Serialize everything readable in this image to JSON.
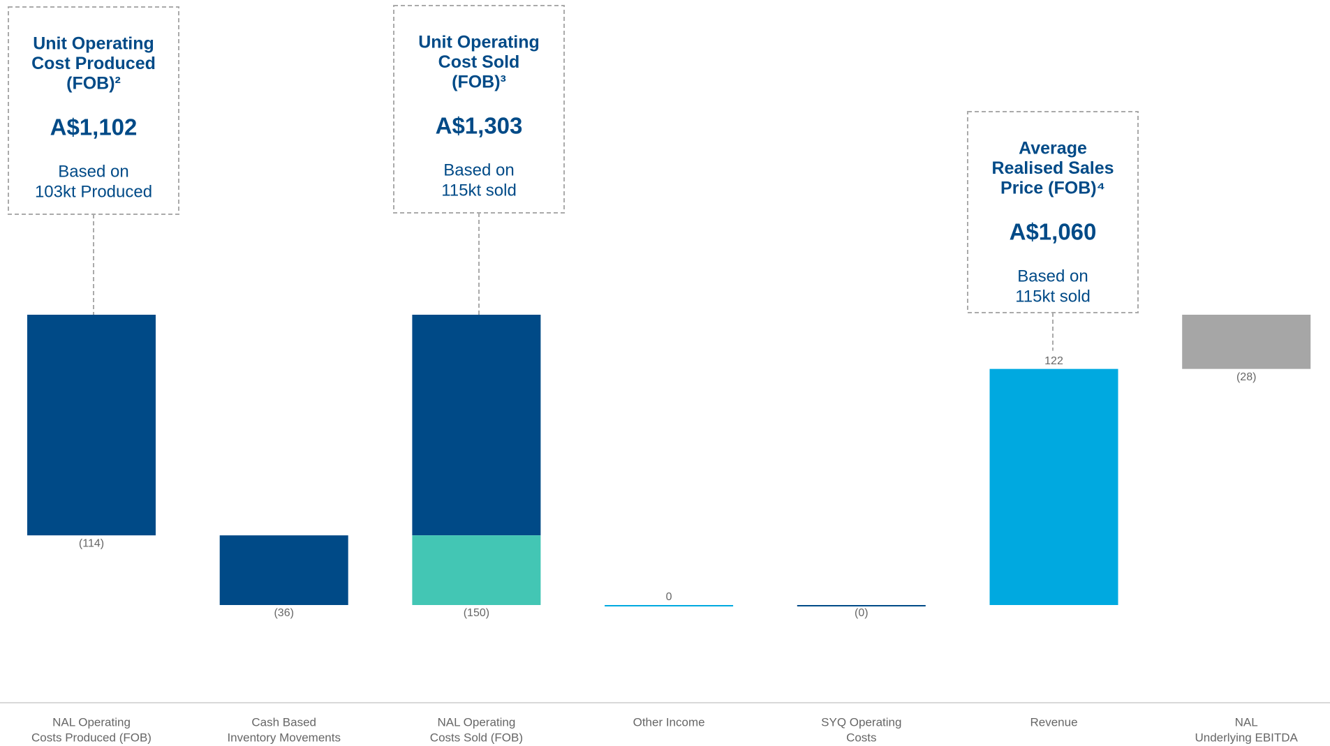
{
  "chart_data": {
    "type": "waterfall",
    "categories": [
      [
        "NAL Operating",
        "Costs Produced (FOB)"
      ],
      [
        "Cash Based",
        "Inventory Movements"
      ],
      [
        "NAL Operating",
        "Costs Sold (FOB)"
      ],
      [
        "Other Income"
      ],
      [
        "SYQ Operating",
        "Costs"
      ],
      [
        "Revenue"
      ],
      [
        "NAL",
        "Underlying EBITDA"
      ]
    ],
    "values": [
      -114,
      -36,
      -150,
      0,
      0,
      122,
      -28
    ],
    "value_labels": [
      "(114)",
      "(36)",
      "(150)",
      "0",
      "(0)",
      "122",
      "(28)"
    ],
    "measures": [
      "relative",
      "relative",
      "total",
      "relative",
      "relative",
      "relative",
      "total"
    ],
    "colors": [
      "#004a87",
      "#004a87",
      "#004a87",
      "#00a9e0",
      "#004a87",
      "#00a9e0",
      "#a6a6a6"
    ],
    "segments": [
      {
        "bar": 2,
        "parts": [
          {
            "value": -114,
            "color": "#004a87"
          },
          {
            "value": -36,
            "color": "#43c6b4"
          }
        ]
      }
    ],
    "annotations": [
      {
        "bar": 0,
        "title": [
          "Unit Operating",
          "Cost Produced",
          "(FOB)²"
        ],
        "value": "A$1,102",
        "basis": [
          "Based on",
          "103kt Produced"
        ]
      },
      {
        "bar": 2,
        "title": [
          "Unit Operating",
          "Cost Sold",
          "(FOB)³"
        ],
        "value": "A$1,303",
        "basis": [
          "Based on",
          "115kt sold"
        ]
      },
      {
        "bar": 5,
        "title": [
          "Average",
          "Realised Sales",
          "Price (FOB)⁴"
        ],
        "value": "A$1,060",
        "basis": [
          "Based on",
          "115kt sold"
        ]
      }
    ]
  }
}
